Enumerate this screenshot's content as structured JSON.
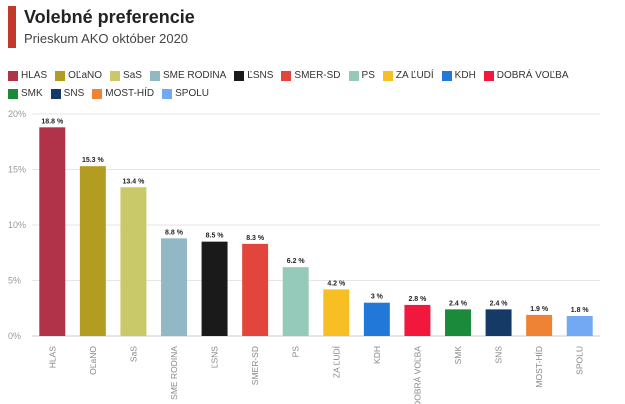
{
  "header": {
    "title": "Volebné preferencie",
    "subtitle": "Prieskum AKO október 2020",
    "accent_color": "#c0392b"
  },
  "chart_data": {
    "type": "bar",
    "title": "Volebné preferencie",
    "subtitle": "Prieskum AKO október 2020",
    "categories": [
      "HLAS",
      "OĽaNO",
      "SaS",
      "SME RODINA",
      "ĽSNS",
      "SMER-SD",
      "PS",
      "ZA ĽUDÍ",
      "KDH",
      "DOBRÁ VOĽBA",
      "SMK",
      "SNS",
      "MOST-HÍD",
      "SPOLU"
    ],
    "values": [
      18.8,
      15.3,
      13.4,
      8.8,
      8.5,
      8.3,
      6.2,
      4.2,
      3,
      2.8,
      2.4,
      2.4,
      1.9,
      1.8
    ],
    "value_labels": [
      "18.8 %",
      "15.3 %",
      "13.4 %",
      "8.8 %",
      "8.5 %",
      "8.3 %",
      "6.2 %",
      "4.2 %",
      "3 %",
      "2.8 %",
      "2.4 %",
      "2.4 %",
      "1.9 %",
      "1.8 %"
    ],
    "colors": [
      "#b0334a",
      "#b39c22",
      "#c9c96a",
      "#93b8c5",
      "#1a1a1a",
      "#e2453c",
      "#95c9ba",
      "#f7bf24",
      "#2178d9",
      "#f2183d",
      "#1b8a3a",
      "#163a66",
      "#ee8433",
      "#73a9f2"
    ],
    "ylim": [
      0,
      20
    ],
    "yticks": [
      0,
      5,
      10,
      15,
      20
    ],
    "ytick_labels": [
      "0%",
      "5%",
      "10%",
      "15%",
      "20%"
    ],
    "xlabel": "",
    "ylabel": "",
    "grid": true,
    "legend": "top"
  }
}
